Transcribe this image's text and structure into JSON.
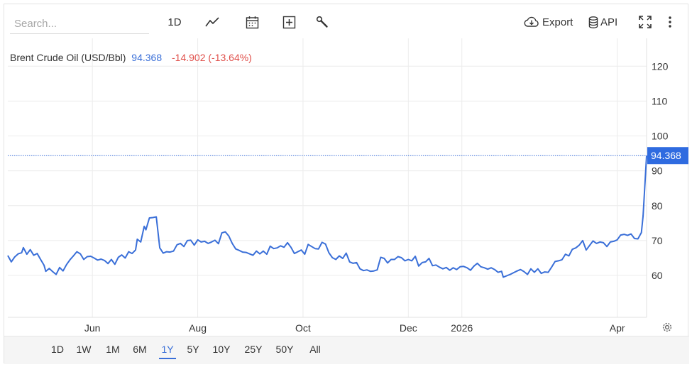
{
  "toolbar": {
    "search_placeholder": "Search...",
    "interval_label": "1D",
    "export_label": "Export",
    "api_label": "API"
  },
  "legend": {
    "name": "Brent Crude Oil (USD/Bbl)",
    "price": "94.368",
    "change": "-14.902 (-13.64%)"
  },
  "ranges": [
    "1D",
    "1W",
    "1M",
    "6M",
    "1Y",
    "5Y",
    "10Y",
    "25Y",
    "50Y",
    "All"
  ],
  "active_range": "1Y",
  "colors": {
    "line": "#3a6fd8",
    "price_tag": "#2f6be0",
    "grid": "#ececec",
    "negative": "#e0504b"
  },
  "chart_data": {
    "type": "line",
    "title": "Brent Crude Oil (USD/Bbl)",
    "last_value": 94.368,
    "last_value_label": "94.368",
    "ylim": [
      48,
      128
    ],
    "y_ticks": [
      60,
      70,
      80,
      90,
      100,
      110,
      120
    ],
    "x_range": [
      "2025-04-13",
      "2026-04-18"
    ],
    "x_ticks": [
      {
        "date": "2025-06-01",
        "label": "Jun"
      },
      {
        "date": "2025-08-01",
        "label": "Aug"
      },
      {
        "date": "2025-10-01",
        "label": "Oct"
      },
      {
        "date": "2025-12-01",
        "label": "Dec"
      },
      {
        "date": "2026-01-01",
        "label": "2026"
      },
      {
        "date": "2026-04-01",
        "label": "Apr"
      }
    ],
    "grid": true,
    "series": [
      {
        "name": "Brent Crude Oil (USD/Bbl)",
        "points": [
          [
            "2025-04-13",
            65.7
          ],
          [
            "2025-04-15",
            63.9
          ],
          [
            "2025-04-17",
            65.3
          ],
          [
            "2025-04-19",
            66.2
          ],
          [
            "2025-04-21",
            66.5
          ],
          [
            "2025-04-22",
            68.0
          ],
          [
            "2025-04-24",
            66.1
          ],
          [
            "2025-04-26",
            67.4
          ],
          [
            "2025-04-28",
            65.8
          ],
          [
            "2025-04-30",
            66.3
          ],
          [
            "2025-05-02",
            64.6
          ],
          [
            "2025-05-04",
            62.9
          ],
          [
            "2025-05-05",
            61.2
          ],
          [
            "2025-05-07",
            62.0
          ],
          [
            "2025-05-09",
            61.1
          ],
          [
            "2025-05-11",
            60.3
          ],
          [
            "2025-05-13",
            62.3
          ],
          [
            "2025-05-15",
            61.3
          ],
          [
            "2025-05-17",
            63.1
          ],
          [
            "2025-05-19",
            64.5
          ],
          [
            "2025-05-21",
            65.6
          ],
          [
            "2025-05-23",
            66.8
          ],
          [
            "2025-05-25",
            66.2
          ],
          [
            "2025-05-27",
            64.6
          ],
          [
            "2025-05-29",
            65.4
          ],
          [
            "2025-05-31",
            65.5
          ],
          [
            "2025-06-02",
            65.0
          ],
          [
            "2025-06-04",
            64.4
          ],
          [
            "2025-06-06",
            64.7
          ],
          [
            "2025-06-08",
            64.3
          ],
          [
            "2025-06-10",
            63.4
          ],
          [
            "2025-06-12",
            64.6
          ],
          [
            "2025-06-14",
            63.2
          ],
          [
            "2025-06-16",
            65.2
          ],
          [
            "2025-06-18",
            65.9
          ],
          [
            "2025-06-20",
            65.0
          ],
          [
            "2025-06-22",
            66.8
          ],
          [
            "2025-06-24",
            66.3
          ],
          [
            "2025-06-26",
            67.3
          ],
          [
            "2025-06-27",
            70.4
          ],
          [
            "2025-06-29",
            69.6
          ],
          [
            "2025-07-01",
            74.1
          ],
          [
            "2025-07-02",
            73.1
          ],
          [
            "2025-07-04",
            76.5
          ],
          [
            "2025-07-06",
            76.6
          ],
          [
            "2025-07-08",
            76.8
          ],
          [
            "2025-07-10",
            67.9
          ],
          [
            "2025-07-12",
            66.4
          ],
          [
            "2025-07-14",
            66.8
          ],
          [
            "2025-07-16",
            66.7
          ],
          [
            "2025-07-18",
            67.0
          ],
          [
            "2025-07-20",
            68.8
          ],
          [
            "2025-07-22",
            69.2
          ],
          [
            "2025-07-24",
            68.3
          ],
          [
            "2025-07-26",
            70.0
          ],
          [
            "2025-07-28",
            70.1
          ],
          [
            "2025-07-30",
            68.7
          ],
          [
            "2025-08-01",
            70.2
          ],
          [
            "2025-08-03",
            69.6
          ],
          [
            "2025-08-05",
            69.8
          ],
          [
            "2025-08-07",
            69.2
          ],
          [
            "2025-08-09",
            69.6
          ],
          [
            "2025-08-11",
            70.1
          ],
          [
            "2025-08-13",
            69.1
          ],
          [
            "2025-08-15",
            72.2
          ],
          [
            "2025-08-17",
            72.5
          ],
          [
            "2025-08-19",
            71.3
          ],
          [
            "2025-08-21",
            69.2
          ],
          [
            "2025-08-23",
            67.6
          ],
          [
            "2025-08-25",
            67.2
          ],
          [
            "2025-08-27",
            66.7
          ],
          [
            "2025-08-29",
            66.6
          ],
          [
            "2025-08-31",
            66.2
          ],
          [
            "2025-09-02",
            65.8
          ],
          [
            "2025-09-04",
            67.0
          ],
          [
            "2025-09-06",
            66.2
          ],
          [
            "2025-09-08",
            67.0
          ],
          [
            "2025-09-10",
            66.1
          ],
          [
            "2025-09-12",
            68.4
          ],
          [
            "2025-09-14",
            67.7
          ],
          [
            "2025-09-16",
            67.9
          ],
          [
            "2025-09-18",
            68.5
          ],
          [
            "2025-09-20",
            68.1
          ],
          [
            "2025-09-22",
            69.4
          ],
          [
            "2025-09-24",
            68.1
          ],
          [
            "2025-09-26",
            66.3
          ],
          [
            "2025-09-28",
            66.8
          ],
          [
            "2025-09-30",
            67.3
          ],
          [
            "2025-10-02",
            66.1
          ],
          [
            "2025-10-04",
            68.9
          ],
          [
            "2025-10-06",
            68.3
          ],
          [
            "2025-10-08",
            67.7
          ],
          [
            "2025-10-10",
            67.6
          ],
          [
            "2025-10-12",
            69.5
          ],
          [
            "2025-10-14",
            69.0
          ],
          [
            "2025-10-16",
            66.5
          ],
          [
            "2025-10-18",
            65.1
          ],
          [
            "2025-10-20",
            64.6
          ],
          [
            "2025-10-22",
            65.6
          ],
          [
            "2025-10-24",
            64.9
          ],
          [
            "2025-10-26",
            66.4
          ],
          [
            "2025-10-28",
            63.9
          ],
          [
            "2025-10-30",
            63.5
          ],
          [
            "2025-11-01",
            63.7
          ],
          [
            "2025-11-03",
            61.9
          ],
          [
            "2025-11-05",
            61.4
          ],
          [
            "2025-11-07",
            61.6
          ],
          [
            "2025-11-09",
            61.2
          ],
          [
            "2025-11-11",
            61.3
          ],
          [
            "2025-11-13",
            61.6
          ],
          [
            "2025-11-15",
            65.2
          ],
          [
            "2025-11-17",
            64.9
          ],
          [
            "2025-11-19",
            63.6
          ],
          [
            "2025-11-21",
            64.6
          ],
          [
            "2025-11-23",
            64.6
          ],
          [
            "2025-11-25",
            65.4
          ],
          [
            "2025-11-27",
            65.1
          ],
          [
            "2025-11-29",
            64.2
          ],
          [
            "2025-12-01",
            64.6
          ],
          [
            "2025-12-03",
            64.2
          ],
          [
            "2025-12-05",
            65.5
          ],
          [
            "2025-12-07",
            62.7
          ],
          [
            "2025-12-09",
            63.7
          ],
          [
            "2025-12-11",
            63.9
          ],
          [
            "2025-12-13",
            64.9
          ],
          [
            "2025-12-15",
            62.8
          ],
          [
            "2025-12-17",
            63.0
          ],
          [
            "2025-12-19",
            62.4
          ],
          [
            "2025-12-21",
            61.9
          ],
          [
            "2025-12-23",
            62.3
          ],
          [
            "2025-12-25",
            61.5
          ],
          [
            "2025-12-27",
            62.2
          ],
          [
            "2025-12-29",
            61.7
          ],
          [
            "2025-12-31",
            62.5
          ],
          [
            "2026-01-02",
            62.6
          ],
          [
            "2026-01-04",
            62.2
          ],
          [
            "2026-01-06",
            61.5
          ],
          [
            "2026-01-08",
            62.7
          ],
          [
            "2026-01-10",
            63.5
          ],
          [
            "2026-01-12",
            62.5
          ],
          [
            "2026-01-14",
            62.2
          ],
          [
            "2026-01-16",
            61.8
          ],
          [
            "2026-01-18",
            62.2
          ],
          [
            "2026-01-20",
            61.7
          ],
          [
            "2026-01-22",
            60.9
          ],
          [
            "2026-01-24",
            61.2
          ],
          [
            "2026-01-25",
            59.5
          ],
          [
            "2026-01-27",
            59.9
          ],
          [
            "2026-01-29",
            60.3
          ],
          [
            "2026-01-31",
            60.8
          ],
          [
            "2026-02-02",
            61.3
          ],
          [
            "2026-02-04",
            61.7
          ],
          [
            "2026-02-06",
            61.1
          ],
          [
            "2026-02-08",
            60.3
          ],
          [
            "2026-02-10",
            61.9
          ],
          [
            "2026-02-12",
            60.9
          ],
          [
            "2026-02-14",
            61.9
          ],
          [
            "2026-02-16",
            60.6
          ],
          [
            "2026-02-18",
            61.0
          ],
          [
            "2026-02-20",
            60.9
          ],
          [
            "2026-02-22",
            62.4
          ],
          [
            "2026-02-24",
            64.0
          ],
          [
            "2026-02-26",
            64.2
          ],
          [
            "2026-02-28",
            64.5
          ],
          [
            "2026-03-02",
            66.1
          ],
          [
            "2026-03-04",
            65.6
          ],
          [
            "2026-03-06",
            67.5
          ],
          [
            "2026-03-08",
            67.9
          ],
          [
            "2026-03-10",
            68.7
          ],
          [
            "2026-03-12",
            70.0
          ],
          [
            "2026-03-14",
            67.3
          ],
          [
            "2026-03-16",
            68.6
          ],
          [
            "2026-03-18",
            69.9
          ],
          [
            "2026-03-20",
            69.2
          ],
          [
            "2026-03-22",
            69.6
          ],
          [
            "2026-03-24",
            69.4
          ],
          [
            "2026-03-26",
            68.3
          ],
          [
            "2026-03-28",
            69.6
          ],
          [
            "2026-03-30",
            69.8
          ],
          [
            "2026-04-01",
            70.2
          ],
          [
            "2026-04-03",
            71.6
          ],
          [
            "2026-04-05",
            71.8
          ],
          [
            "2026-04-07",
            71.5
          ],
          [
            "2026-04-09",
            71.9
          ],
          [
            "2026-04-11",
            70.6
          ],
          [
            "2026-04-13",
            70.5
          ],
          [
            "2026-04-15",
            72.3
          ],
          [
            "2026-04-16",
            77.1
          ],
          [
            "2026-04-18",
            94.368
          ]
        ]
      }
    ]
  }
}
